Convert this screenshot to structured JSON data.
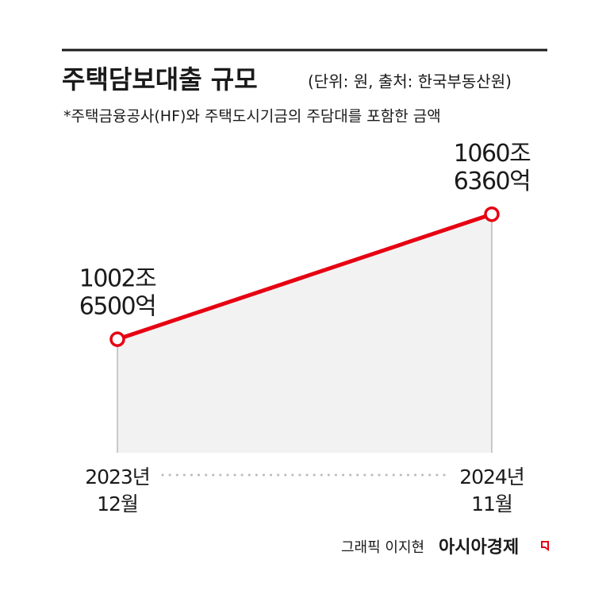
{
  "chart_data": {
    "type": "area-line",
    "title": "주택담보대출 규모",
    "subtitle": "(단위: 원, 출처: 한국부동산원)",
    "note": "*주택금융공사(HF)와 주택도시기금의 주담대를 포함한 금액",
    "categories": [
      [
        "2023년",
        "12월"
      ],
      [
        "2024년",
        "11월"
      ]
    ],
    "values": [
      1002.65,
      1060.636
    ],
    "value_labels": [
      [
        "1002조",
        "6500억"
      ],
      [
        "1060조",
        "6360억"
      ]
    ],
    "color": "#e60012",
    "fill": "#f2f2f2",
    "ylim": [
      950,
      1090
    ]
  },
  "credit": {
    "graphic": "그래픽 이지현",
    "brand": "아시아경제"
  }
}
